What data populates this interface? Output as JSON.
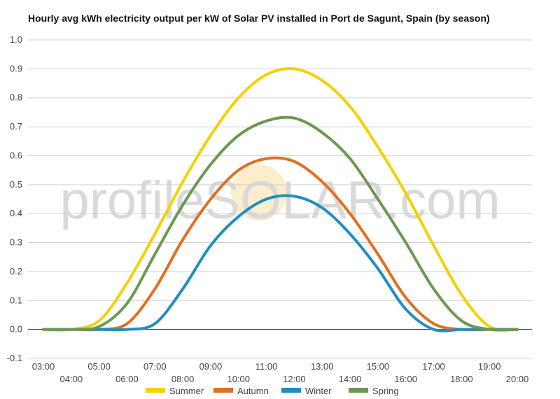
{
  "chart_data": {
    "type": "line",
    "title": "Hourly avg kWh electricity output per kW of Solar PV installed in Port de Sagunt, Spain (by season)",
    "xlabel": "",
    "ylabel": "",
    "ylim": [
      -0.1,
      1.0
    ],
    "yticks": [
      "-0.1",
      "0.0",
      "0.1",
      "0.2",
      "0.3",
      "0.4",
      "0.5",
      "0.6",
      "0.7",
      "0.8",
      "0.9",
      "1.0"
    ],
    "x": [
      "03:00",
      "04:00",
      "05:00",
      "06:00",
      "07:00",
      "08:00",
      "09:00",
      "10:00",
      "11:00",
      "12:00",
      "13:00",
      "14:00",
      "15:00",
      "16:00",
      "17:00",
      "18:00",
      "19:00",
      "20:00"
    ],
    "grid": true,
    "legend_position": "bottom",
    "watermark": "profileSOLAR.com",
    "series": [
      {
        "name": "Summer",
        "color": "#f5d100",
        "values": [
          0.0,
          0.0,
          0.03,
          0.16,
          0.33,
          0.51,
          0.67,
          0.8,
          0.88,
          0.9,
          0.86,
          0.77,
          0.63,
          0.47,
          0.29,
          0.12,
          0.01,
          0.0
        ]
      },
      {
        "name": "Autumn",
        "color": "#e07020",
        "values": [
          0.0,
          0.0,
          0.0,
          0.02,
          0.14,
          0.31,
          0.45,
          0.55,
          0.59,
          0.58,
          0.51,
          0.4,
          0.26,
          0.11,
          0.02,
          0.0,
          0.0,
          0.0
        ]
      },
      {
        "name": "Winter",
        "color": "#1f8fbf",
        "values": [
          0.0,
          0.0,
          0.0,
          0.0,
          0.02,
          0.14,
          0.29,
          0.39,
          0.45,
          0.46,
          0.42,
          0.33,
          0.21,
          0.07,
          0.0,
          0.0,
          0.0,
          0.0
        ]
      },
      {
        "name": "Spring",
        "color": "#6a9a50",
        "values": [
          0.0,
          0.0,
          0.01,
          0.09,
          0.26,
          0.43,
          0.57,
          0.67,
          0.72,
          0.73,
          0.68,
          0.59,
          0.45,
          0.3,
          0.14,
          0.03,
          0.0,
          0.0
        ]
      }
    ]
  }
}
